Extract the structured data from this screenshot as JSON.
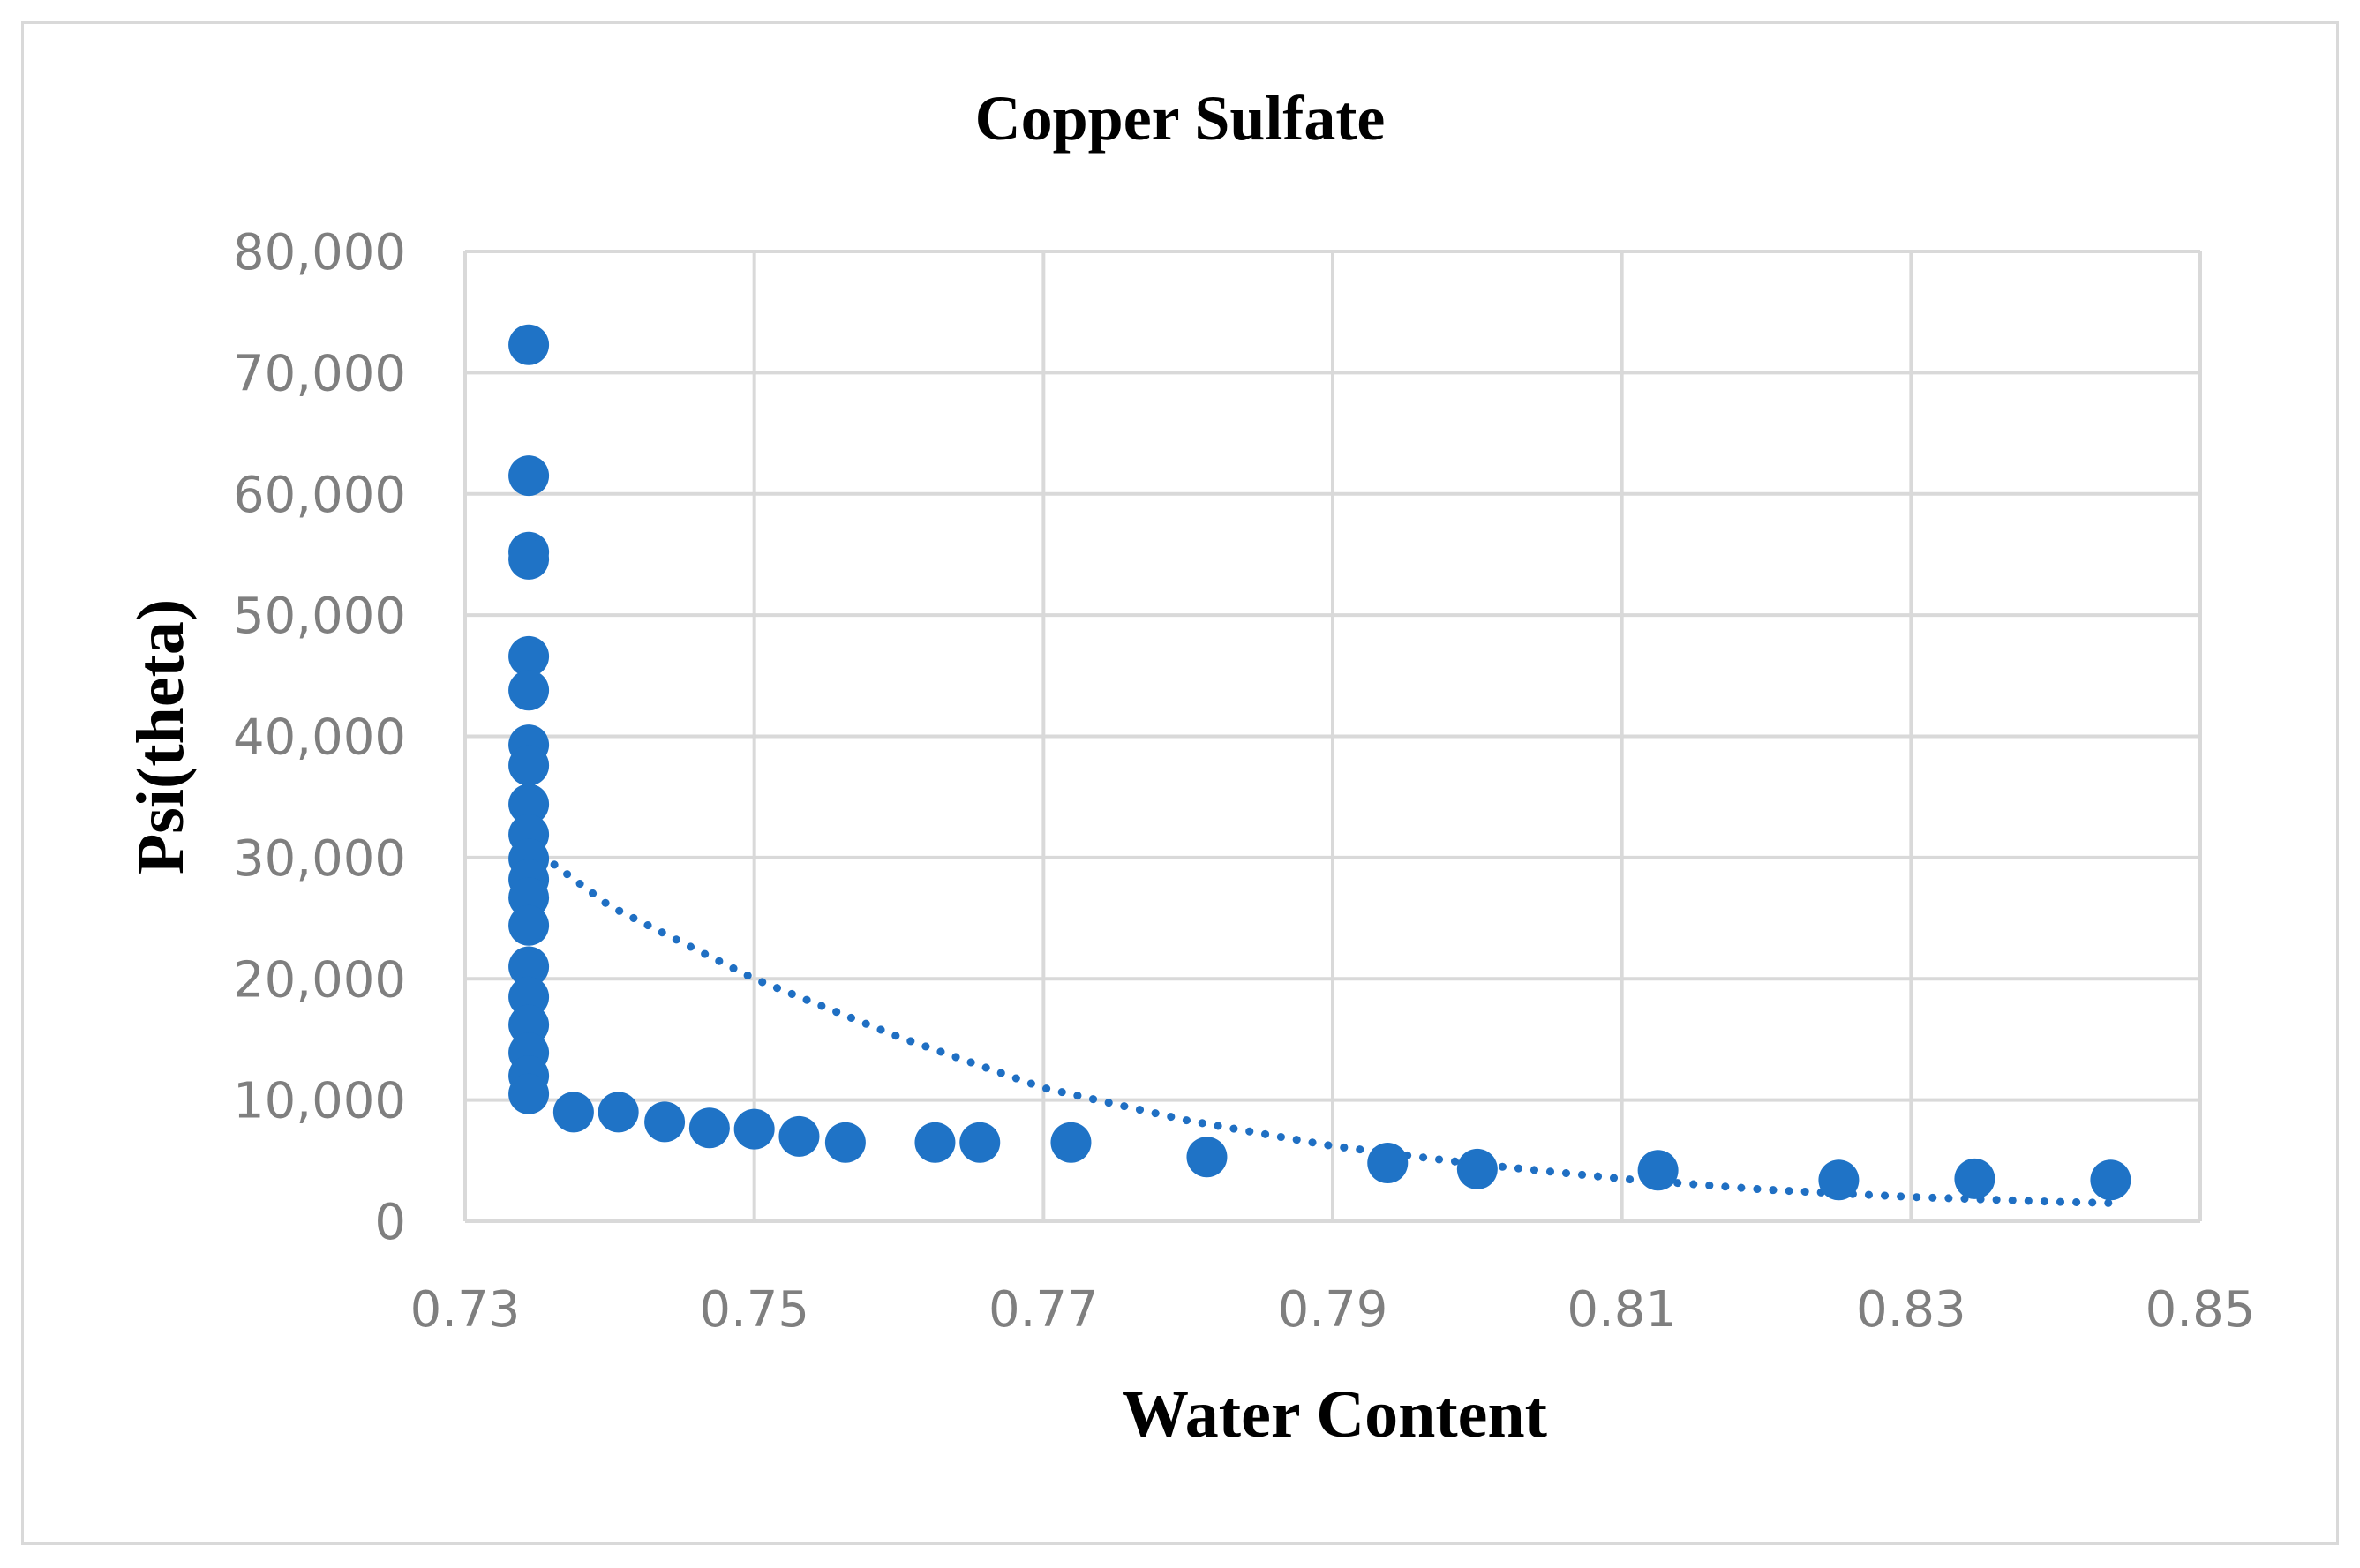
{
  "chart_data": {
    "type": "scatter",
    "title": "Copper Sulfate",
    "xlabel": "Water Content",
    "ylabel": "Psi(theta)",
    "xlim": [
      0.73,
      0.85
    ],
    "ylim": [
      0,
      80000
    ],
    "xticks": [
      0.73,
      0.75,
      0.77,
      0.79,
      0.81,
      0.83,
      0.85
    ],
    "xtick_labels": [
      "0.73",
      "0.75",
      "0.77",
      "0.79",
      "0.81",
      "0.83",
      "0.85"
    ],
    "yticks": [
      0,
      10000,
      20000,
      30000,
      40000,
      50000,
      60000,
      70000,
      80000
    ],
    "ytick_labels": [
      "0",
      "10,000",
      "20,000",
      "30,000",
      "40,000",
      "50,000",
      "60,000",
      "70,000",
      "80,000"
    ],
    "grid": true,
    "legend": "none",
    "marker_color": "#1f73c6",
    "points": [
      {
        "x": 0.7344,
        "y": 72300
      },
      {
        "x": 0.7344,
        "y": 61500
      },
      {
        "x": 0.7344,
        "y": 55200
      },
      {
        "x": 0.7344,
        "y": 54600
      },
      {
        "x": 0.7344,
        "y": 46600
      },
      {
        "x": 0.7344,
        "y": 43800
      },
      {
        "x": 0.7344,
        "y": 39300
      },
      {
        "x": 0.7344,
        "y": 37600
      },
      {
        "x": 0.7344,
        "y": 34400
      },
      {
        "x": 0.7344,
        "y": 31900
      },
      {
        "x": 0.7344,
        "y": 29900
      },
      {
        "x": 0.7344,
        "y": 28200
      },
      {
        "x": 0.7344,
        "y": 26700
      },
      {
        "x": 0.7344,
        "y": 24400
      },
      {
        "x": 0.7344,
        "y": 21000
      },
      {
        "x": 0.7344,
        "y": 18500
      },
      {
        "x": 0.7344,
        "y": 16200
      },
      {
        "x": 0.7344,
        "y": 13900
      },
      {
        "x": 0.7344,
        "y": 12000
      },
      {
        "x": 0.7344,
        "y": 10500
      },
      {
        "x": 0.7375,
        "y": 9000
      },
      {
        "x": 0.7406,
        "y": 9000
      },
      {
        "x": 0.7438,
        "y": 8200
      },
      {
        "x": 0.7469,
        "y": 7700
      },
      {
        "x": 0.75,
        "y": 7600
      },
      {
        "x": 0.7531,
        "y": 7000
      },
      {
        "x": 0.7563,
        "y": 6500
      },
      {
        "x": 0.7625,
        "y": 6500
      },
      {
        "x": 0.7656,
        "y": 6500
      },
      {
        "x": 0.7719,
        "y": 6500
      },
      {
        "x": 0.7813,
        "y": 5300
      },
      {
        "x": 0.7938,
        "y": 4800
      },
      {
        "x": 0.8,
        "y": 4300
      },
      {
        "x": 0.8125,
        "y": 4200
      },
      {
        "x": 0.825,
        "y": 3400
      },
      {
        "x": 0.8344,
        "y": 3500
      },
      {
        "x": 0.8438,
        "y": 3400
      }
    ],
    "trendline": {
      "style": "dotted",
      "x": [
        0.7344,
        0.74,
        0.75,
        0.76,
        0.77,
        0.78,
        0.79,
        0.8,
        0.81,
        0.82,
        0.83,
        0.84,
        0.8438
      ],
      "y": [
        31000,
        26000,
        20000,
        15200,
        11000,
        8300,
        6200,
        4700,
        3500,
        2600,
        2000,
        1600,
        1500
      ]
    }
  }
}
